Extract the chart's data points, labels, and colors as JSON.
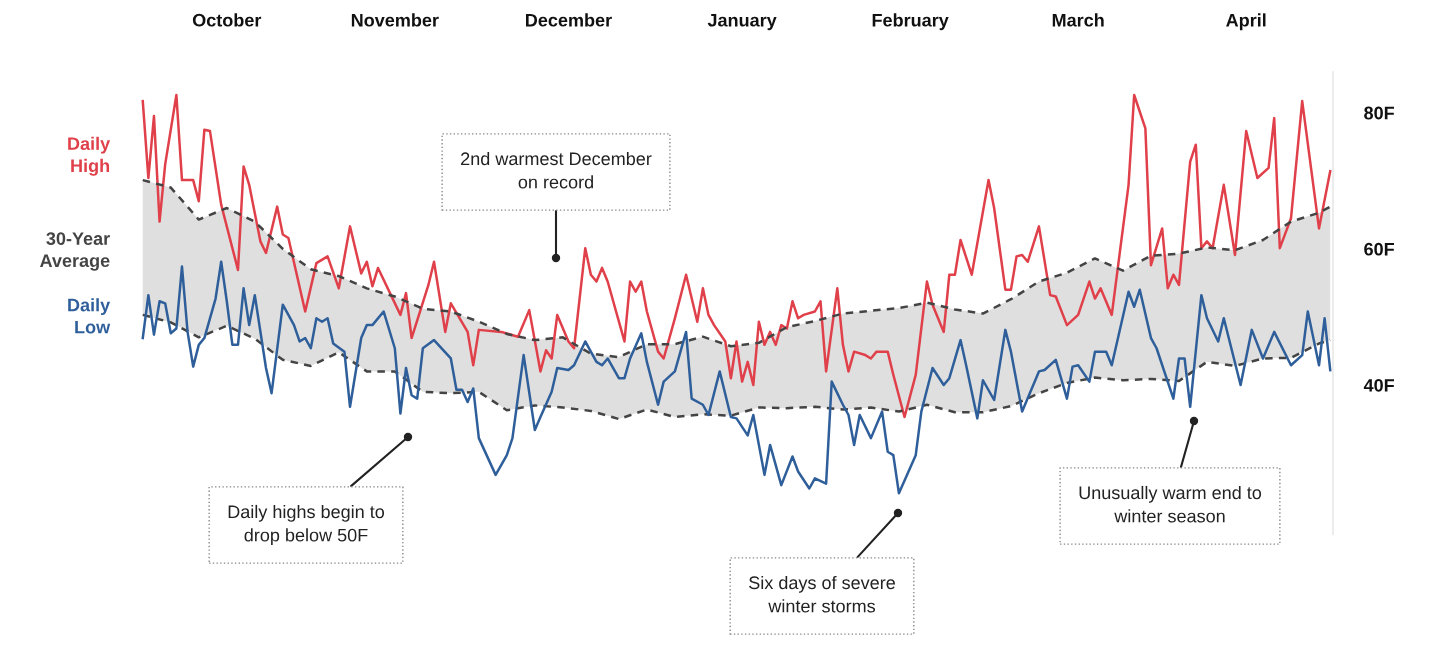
{
  "chart_data": {
    "type": "line",
    "categories": [
      null,
      null,
      null,
      null,
      null,
      null,
      null,
      null,
      null,
      null,
      null,
      null,
      null,
      null,
      null,
      "October",
      null,
      null,
      null,
      null,
      null,
      null,
      null,
      null,
      null,
      null,
      null,
      null,
      null,
      null,
      null,
      null,
      null,
      null,
      null,
      null,
      null,
      null,
      null,
      null,
      null,
      null,
      null,
      null,
      null,
      "November",
      null,
      null,
      null,
      null,
      null,
      null,
      null,
      null,
      null,
      null,
      null,
      null,
      null,
      null,
      null,
      null,
      null,
      null,
      null,
      null,
      null,
      null,
      null,
      null,
      null,
      null,
      null,
      null,
      null,
      null,
      "December",
      null,
      null,
      null,
      null,
      null,
      null,
      null,
      null,
      null,
      null,
      null,
      null,
      null,
      null,
      null,
      null,
      null,
      null,
      null,
      null,
      null,
      null,
      null,
      null,
      null,
      null,
      null,
      null,
      null,
      null,
      "January",
      null,
      null,
      null,
      null,
      null,
      null,
      null,
      null,
      null,
      null,
      null,
      null,
      null,
      null,
      null,
      null,
      null,
      null,
      null,
      null,
      null,
      null,
      null,
      null,
      null,
      null,
      null,
      null,
      null,
      "February",
      null,
      null,
      null,
      null,
      null,
      null,
      null,
      null,
      null,
      null,
      null,
      null,
      null,
      null,
      null,
      null,
      null,
      null,
      null,
      null,
      null,
      null,
      null,
      null,
      null,
      null,
      null,
      null,
      null,
      "March",
      null,
      null,
      null,
      null,
      null,
      null,
      null,
      null,
      null,
      null,
      null,
      null,
      null,
      null,
      null,
      null,
      null,
      null,
      null,
      null,
      null,
      null,
      null,
      null,
      null,
      null,
      null,
      null,
      null,
      "April",
      null,
      null,
      null,
      null,
      null,
      null,
      null,
      null,
      null,
      null,
      null,
      null,
      null,
      null,
      null
    ],
    "ylim": [
      18,
      86
    ],
    "yticks": [
      {
        "value": 40,
        "label": "40F"
      },
      {
        "value": 60,
        "label": "60F"
      },
      {
        "value": 80,
        "label": "80F"
      }
    ],
    "grid": false,
    "legend": "left",
    "series": [
      {
        "name": "Daily\nHigh",
        "color": "#e0404a",
        "values": [
          81.7,
          70.4,
          79.5,
          64.0,
          72.4,
          null,
          82.6,
          70.1,
          null,
          70.1,
          67.0,
          77.5,
          77.3,
          null,
          66.5,
          null,
          null,
          56.9,
          72.1,
          69.4,
          null,
          61.1,
          59.4,
          null,
          66.2,
          62.1,
          61.6,
          null,
          null,
          50.8,
          null,
          57.9,
          null,
          58.9,
          null,
          54.2,
          null,
          63.3,
          null,
          56.4,
          58.1,
          54.5,
          57.2,
          null,
          null,
          null,
          50.3,
          53.5,
          46.9,
          null,
          null,
          54.7,
          58.1,
          null,
          47.8,
          52.0,
          null,
          null,
          47.8,
          42.9,
          48.1,
          null,
          null,
          null,
          47.8,
          null,
          null,
          47.1,
          null,
          51.0,
          null,
          42.0,
          45.1,
          43.9,
          50.3,
          null,
          46.4,
          45.4,
          null,
          60.1,
          56.2,
          55.2,
          57.2,
          55.2,
          null,
          null,
          46.4,
          55.2,
          53.7,
          55.2,
          50.8,
          null,
          44.9,
          43.9,
          null,
          49.8,
          null,
          56.2,
          null,
          49.3,
          54.2,
          50.3,
          48.8,
          null,
          46.4,
          41.0,
          46.4,
          40.5,
          43.4,
          40.0,
          49.3,
          45.9,
          47.8,
          45.9,
          48.8,
          48.3,
          52.3,
          49.8,
          50.3,
          null,
          50.8,
          52.3,
          42.0,
          null,
          54.2,
          45.9,
          42.0,
          44.9,
          null,
          44.4,
          43.9,
          44.9,
          null,
          44.9,
          41.5,
          null,
          35.3,
          null,
          41.5,
          null,
          55.2,
          51.8,
          null,
          47.8,
          56.2,
          56.2,
          61.3,
          null,
          56.2,
          null,
          null,
          70.1,
          66.0,
          null,
          54.0,
          54.0,
          58.9,
          59.1,
          58.1,
          null,
          63.3,
          null,
          53.2,
          53.0,
          null,
          48.8,
          null,
          50.3,
          null,
          55.2,
          52.7,
          54.2,
          null,
          50.3,
          56.7,
          null,
          69.4,
          82.6,
          null,
          77.7,
          57.6,
          null,
          63.0,
          54.2,
          56.2,
          54.7,
          null,
          72.8,
          75.3,
          60.1,
          61.1,
          60.1,
          null,
          69.4,
          null,
          59.1,
          null,
          77.3,
          null,
          70.4,
          null,
          71.9,
          79.2,
          60.1,
          null,
          64.5,
          null,
          81.7,
          null,
          null,
          63.0,
          null,
          71.4
        ]
      },
      {
        "name": "30-Year\nAverage",
        "color": "#444444",
        "line_style": "dashed",
        "upper": [
          70.1,
          null,
          null,
          null,
          null,
          69.0,
          null,
          null,
          null,
          null,
          64.3,
          null,
          null,
          null,
          null,
          66.0,
          null,
          null,
          null,
          null,
          64.0,
          null,
          null,
          null,
          null,
          60.0,
          null,
          null,
          null,
          null,
          57.0,
          null,
          null,
          null,
          null,
          56.0,
          null,
          null,
          null,
          null,
          54.2,
          null,
          null,
          null,
          null,
          53.0,
          null,
          null,
          null,
          null,
          51.2,
          null,
          null,
          null,
          null,
          50.8,
          null,
          null,
          null,
          null,
          49.3,
          null,
          null,
          null,
          null,
          47.5,
          null,
          null,
          null,
          null,
          46.6,
          null,
          null,
          null,
          null,
          47.0,
          null,
          null,
          null,
          null,
          44.6,
          null,
          null,
          null,
          null,
          44.1,
          null,
          null,
          null,
          null,
          46.0,
          null,
          null,
          null,
          null,
          46.0,
          null,
          null,
          null,
          null,
          47.1,
          null,
          null,
          null,
          null,
          45.7,
          null,
          null,
          null,
          null,
          46.2,
          null,
          null,
          null,
          null,
          48.5,
          null,
          null,
          null,
          null,
          49.4,
          null,
          null,
          null,
          null,
          50.5,
          null,
          null,
          null,
          null,
          50.9,
          null,
          null,
          null,
          null,
          51.3,
          null,
          null,
          null,
          null,
          52.1,
          null,
          null,
          null,
          null,
          51.1,
          null,
          null,
          null,
          null,
          50.5,
          null,
          null,
          null,
          null,
          52.6,
          null,
          null,
          null,
          null,
          55.2,
          null,
          null,
          null,
          null,
          56.5,
          null,
          null,
          null,
          null,
          58.6,
          null,
          null,
          null,
          null,
          56.8,
          null,
          null,
          null,
          null,
          59.0,
          null,
          null,
          null,
          null,
          59.3,
          null,
          null,
          null,
          null,
          60.2,
          null,
          null,
          null,
          null,
          59.8,
          null,
          null,
          null,
          null,
          61.3,
          null,
          null,
          null,
          null,
          64.0,
          null,
          null,
          null,
          null,
          65.3,
          null,
          66.2
        ],
        "values": [
          70.1,
          null,
          null,
          null,
          null,
          69.0,
          null,
          null,
          null,
          null,
          64.3,
          null,
          null,
          null,
          null,
          66.0,
          null,
          null,
          null,
          null,
          64.0,
          null,
          null,
          null,
          null,
          60.0,
          null,
          null,
          null,
          null,
          57.0,
          null,
          null,
          null,
          null,
          56.0,
          null,
          null,
          null,
          null,
          54.2,
          null,
          null,
          null,
          null,
          53.0,
          null,
          null,
          null,
          null,
          51.2,
          null,
          null,
          null,
          null,
          50.8,
          null,
          null,
          null,
          null,
          49.3,
          null,
          null,
          null,
          null,
          47.5,
          null,
          null,
          null,
          null,
          46.6,
          null,
          null,
          null,
          null,
          47.0,
          null,
          null,
          null,
          null,
          44.6,
          null,
          null,
          null,
          null,
          44.1,
          null,
          null,
          null,
          null,
          46.0,
          null,
          null,
          null,
          null,
          46.0,
          null,
          null,
          null,
          null,
          47.1,
          null,
          null,
          null,
          null,
          45.7,
          null,
          null,
          null,
          null,
          46.2,
          null,
          null,
          null,
          null,
          48.5,
          null,
          null,
          null,
          null,
          49.4,
          null,
          null,
          null,
          null,
          50.5,
          null,
          null,
          null,
          null,
          50.9,
          null,
          null,
          null,
          null,
          51.3,
          null,
          null,
          null,
          null,
          52.1,
          null,
          null,
          null,
          null,
          51.1,
          null,
          null,
          null,
          null,
          50.5,
          null,
          null,
          null,
          null,
          52.6,
          null,
          null,
          null,
          null,
          55.2,
          null,
          null,
          null,
          null,
          56.5,
          null,
          null,
          null,
          null,
          58.6,
          null,
          null,
          null,
          null,
          56.8,
          null,
          null,
          null,
          null,
          59.0,
          null,
          null,
          null,
          null,
          59.3,
          null,
          null,
          null,
          null,
          60.2,
          null,
          null,
          null,
          null,
          59.8,
          null,
          null,
          null,
          null,
          61.3,
          null,
          null,
          null,
          null,
          64.0,
          null,
          null,
          null,
          null,
          65.3,
          null,
          66.2
        ],
        "lower": [
          50.3,
          null,
          null,
          null,
          null,
          49.2,
          null,
          null,
          null,
          null,
          47.0,
          null,
          null,
          null,
          null,
          48.7,
          null,
          null,
          null,
          null,
          46.8,
          null,
          null,
          null,
          null,
          43.7,
          null,
          null,
          null,
          null,
          42.8,
          null,
          null,
          null,
          null,
          44.8,
          null,
          null,
          null,
          null,
          42.0,
          null,
          null,
          null,
          null,
          42.0,
          null,
          null,
          null,
          null,
          39.0,
          null,
          null,
          null,
          null,
          38.8,
          null,
          null,
          null,
          null,
          39.0,
          null,
          null,
          null,
          null,
          36.3,
          null,
          null,
          null,
          null,
          37.0,
          null,
          null,
          null,
          null,
          36.7,
          null,
          null,
          null,
          null,
          36.2,
          null,
          null,
          null,
          null,
          35.0,
          null,
          null,
          null,
          null,
          36.4,
          null,
          null,
          null,
          null,
          35.3,
          null,
          null,
          null,
          null,
          35.7,
          null,
          null,
          null,
          null,
          35.5,
          null,
          null,
          null,
          null,
          36.7,
          null,
          null,
          null,
          null,
          36.6,
          null,
          null,
          null,
          null,
          36.8,
          null,
          null,
          null,
          null,
          36.4,
          null,
          null,
          null,
          null,
          36.7,
          null,
          null,
          null,
          null,
          36.1,
          null,
          null,
          null,
          null,
          37.1,
          null,
          null,
          null,
          null,
          36.0,
          null,
          null,
          null,
          null,
          36.0,
          null,
          null,
          null,
          null,
          36.9,
          null,
          null,
          null,
          null,
          38.8,
          null,
          null,
          null,
          null,
          40.3,
          null,
          null,
          null,
          null,
          41.1,
          null,
          null,
          null,
          null,
          40.7,
          null,
          null,
          null,
          null,
          40.9,
          null,
          null,
          null,
          null,
          40.6,
          null,
          null,
          null,
          null,
          43.4,
          null,
          null,
          null,
          null,
          42.8,
          null,
          null,
          null,
          null,
          43.9,
          null,
          null,
          null,
          null,
          44.0,
          null,
          null,
          null,
          null,
          46.1,
          null,
          46.6
        ]
      },
      {
        "color": "#444444",
        "line_style": "dashed",
        "values": [
          50.3,
          null,
          null,
          null,
          null,
          49.2,
          null,
          null,
          null,
          null,
          47.0,
          null,
          null,
          null,
          null,
          48.7,
          null,
          null,
          null,
          null,
          46.8,
          null,
          null,
          null,
          null,
          43.7,
          null,
          null,
          null,
          null,
          42.8,
          null,
          null,
          null,
          null,
          44.8,
          null,
          null,
          null,
          null,
          42.0,
          null,
          null,
          null,
          null,
          42.0,
          null,
          null,
          null,
          null,
          39.0,
          null,
          null,
          null,
          null,
          38.8,
          null,
          null,
          null,
          null,
          39.0,
          null,
          null,
          null,
          null,
          36.3,
          null,
          null,
          null,
          null,
          37.0,
          null,
          null,
          null,
          null,
          36.7,
          null,
          null,
          null,
          null,
          36.2,
          null,
          null,
          null,
          null,
          35.0,
          null,
          null,
          null,
          null,
          36.4,
          null,
          null,
          null,
          null,
          35.3,
          null,
          null,
          null,
          null,
          35.7,
          null,
          null,
          null,
          null,
          35.5,
          null,
          null,
          null,
          null,
          36.7,
          null,
          null,
          null,
          null,
          36.6,
          null,
          null,
          null,
          null,
          36.8,
          null,
          null,
          null,
          null,
          36.4,
          null,
          null,
          null,
          null,
          36.7,
          null,
          null,
          null,
          null,
          36.1,
          null,
          null,
          null,
          null,
          37.1,
          null,
          null,
          null,
          null,
          36.0,
          null,
          null,
          null,
          null,
          36.0,
          null,
          null,
          null,
          null,
          36.9,
          null,
          null,
          null,
          null,
          38.8,
          null,
          null,
          null,
          null,
          40.3,
          null,
          null,
          null,
          null,
          41.1,
          null,
          null,
          null,
          null,
          40.7,
          null,
          null,
          null,
          null,
          40.9,
          null,
          null,
          null,
          null,
          40.6,
          null,
          null,
          null,
          null,
          43.4,
          null,
          null,
          null,
          null,
          42.8,
          null,
          null,
          null,
          null,
          43.9,
          null,
          null,
          null,
          null,
          44.0,
          null,
          null,
          null,
          null,
          46.1,
          null,
          46.6
        ]
      },
      {
        "name": "Daily\nLow",
        "color": "#2f5f9a",
        "values": [
          46.9,
          53.2,
          47.4,
          52.3,
          52.0,
          47.6,
          48.3,
          57.4,
          47.8,
          42.7,
          45.9,
          46.9,
          null,
          52.7,
          58.1,
          52.3,
          45.9,
          45.9,
          54.2,
          48.8,
          53.2,
          null,
          42.5,
          38.8,
          null,
          51.8,
          null,
          48.8,
          46.4,
          46.9,
          45.4,
          49.8,
          49.3,
          49.8,
          46.1,
          null,
          44.9,
          36.8,
          null,
          46.9,
          48.8,
          48.8,
          null,
          50.8,
          null,
          45.4,
          35.8,
          42.5,
          38.5,
          38.0,
          45.4,
          null,
          46.6,
          null,
          null,
          43.9,
          39.3,
          39.3,
          37.5,
          39.5,
          32.2,
          null,
          null,
          26.8,
          null,
          29.7,
          32.2,
          null,
          44.4,
          null,
          33.4,
          35.3,
          null,
          39.0,
          42.5,
          null,
          42.2,
          42.9,
          null,
          46.4,
          44.9,
          43.4,
          42.9,
          43.9,
          null,
          41.0,
          41.0,
          43.9,
          null,
          47.6,
          43.4,
          null,
          37.1,
          40.5,
          null,
          42.0,
          null,
          47.8,
          38.0,
          null,
          37.1,
          35.6,
          null,
          42.0,
          null,
          35.3,
          35.1,
          null,
          32.6,
          35.6,
          null,
          26.8,
          31.2,
          null,
          25.3,
          null,
          29.5,
          27.3,
          null,
          24.8,
          26.3,
          null,
          25.5,
          40.5,
          null,
          37.1,
          35.6,
          31.2,
          35.6,
          null,
          32.2,
          null,
          36.1,
          30.2,
          29.7,
          24.1,
          null,
          null,
          29.7,
          36.1,
          null,
          42.5,
          null,
          40.0,
          41.0,
          null,
          46.6,
          42.9,
          null,
          35.1,
          40.7,
          null,
          37.8,
          null,
          48.1,
          44.9,
          null,
          36.1,
          null,
          null,
          42.0,
          42.2,
          null,
          43.7,
          null,
          38.0,
          42.7,
          42.9,
          null,
          40.5,
          44.9,
          null,
          44.9,
          42.9,
          null,
          null,
          53.7,
          51.5,
          54.0,
          null,
          46.9,
          45.4,
          null,
          null,
          38.0,
          43.9,
          43.9,
          36.8,
          null,
          53.2,
          49.8,
          null,
          46.4,
          49.8,
          null,
          null,
          40.0,
          null,
          48.1,
          null,
          43.9,
          null,
          47.8,
          null,
          null,
          42.9,
          null,
          44.4,
          50.8,
          null,
          42.9,
          49.8,
          42.2
        ]
      }
    ],
    "annotations": [
      "2nd warmest December\non record",
      "Daily highs begin to\ndrop below 50F",
      "Six days of severe\nwinter storms",
      "Unusually warm end to\nwinter season"
    ]
  }
}
